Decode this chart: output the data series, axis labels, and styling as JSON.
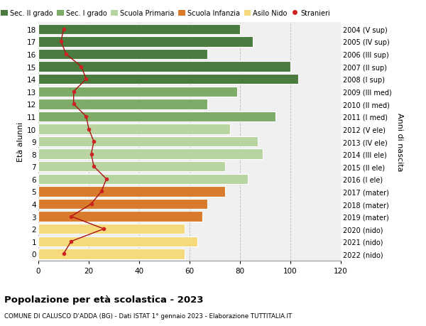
{
  "ages": [
    18,
    17,
    16,
    15,
    14,
    13,
    12,
    11,
    10,
    9,
    8,
    7,
    6,
    5,
    4,
    3,
    2,
    1,
    0
  ],
  "bar_values": [
    80,
    85,
    67,
    100,
    103,
    79,
    67,
    94,
    76,
    87,
    89,
    74,
    83,
    74,
    67,
    65,
    58,
    63,
    58
  ],
  "bar_colors": [
    "#4a7c3f",
    "#4a7c3f",
    "#4a7c3f",
    "#4a7c3f",
    "#4a7c3f",
    "#7dab68",
    "#7dab68",
    "#7dab68",
    "#b8d4a0",
    "#b8d4a0",
    "#b8d4a0",
    "#b8d4a0",
    "#b8d4a0",
    "#d97b2c",
    "#d97b2c",
    "#d97b2c",
    "#f5d97a",
    "#f5d97a",
    "#f5d97a"
  ],
  "stranieri_values": [
    10,
    9,
    11,
    17,
    19,
    14,
    14,
    19,
    20,
    22,
    21,
    22,
    27,
    25,
    21,
    13,
    26,
    13,
    10
  ],
  "right_labels": [
    "2004 (V sup)",
    "2005 (IV sup)",
    "2006 (III sup)",
    "2007 (II sup)",
    "2008 (I sup)",
    "2009 (III med)",
    "2010 (II med)",
    "2011 (I med)",
    "2012 (V ele)",
    "2013 (IV ele)",
    "2014 (III ele)",
    "2015 (II ele)",
    "2016 (I ele)",
    "2017 (mater)",
    "2018 (mater)",
    "2019 (mater)",
    "2020 (nido)",
    "2021 (nido)",
    "2022 (nido)"
  ],
  "legend_labels": [
    "Sec. II grado",
    "Sec. I grado",
    "Scuola Primaria",
    "Scuola Infanzia",
    "Asilo Nido",
    "Stranieri"
  ],
  "legend_colors": [
    "#4a7c3f",
    "#7dab68",
    "#b8d4a0",
    "#d97b2c",
    "#f5d97a",
    "#cc2222"
  ],
  "title": "Popolazione per età scolastica - 2023",
  "subtitle": "COMUNE DI CALUSCO D'ADDA (BG) - Dati ISTAT 1° gennaio 2023 - Elaborazione TUTTITALIA.IT",
  "ylabel_left": "Età alunni",
  "ylabel_right": "Anni di nascita",
  "xlim": [
    0,
    120
  ],
  "xticks": [
    0,
    20,
    40,
    60,
    80,
    100,
    120
  ],
  "bg_color": "#ffffff",
  "bar_bg_color": "#f0f0f0",
  "stranieri_color": "#cc2222",
  "stranieri_line_color": "#aa1111"
}
